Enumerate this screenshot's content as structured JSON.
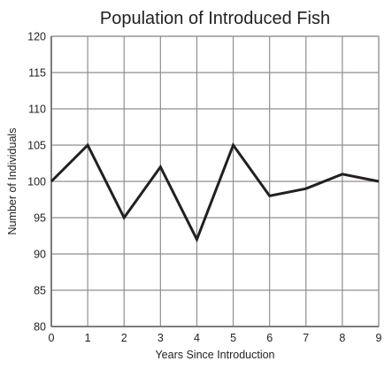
{
  "chart_data": {
    "type": "line",
    "title": "Population of Introduced Fish",
    "xlabel": "Years Since Introduction",
    "ylabel": "Number of Individuals",
    "x": [
      0,
      1,
      2,
      3,
      4,
      5,
      6,
      7,
      8,
      9
    ],
    "series": [
      {
        "values": [
          100,
          105,
          95,
          102,
          92,
          105,
          98,
          99,
          101,
          100
        ],
        "color": "#231f20"
      }
    ],
    "xlim": [
      0,
      9
    ],
    "ylim": [
      80,
      120
    ],
    "xticks": [
      0,
      1,
      2,
      3,
      4,
      5,
      6,
      7,
      8,
      9
    ],
    "yticks": [
      80,
      85,
      90,
      95,
      100,
      105,
      110,
      115,
      120
    ],
    "grid": true,
    "legend": "none"
  }
}
